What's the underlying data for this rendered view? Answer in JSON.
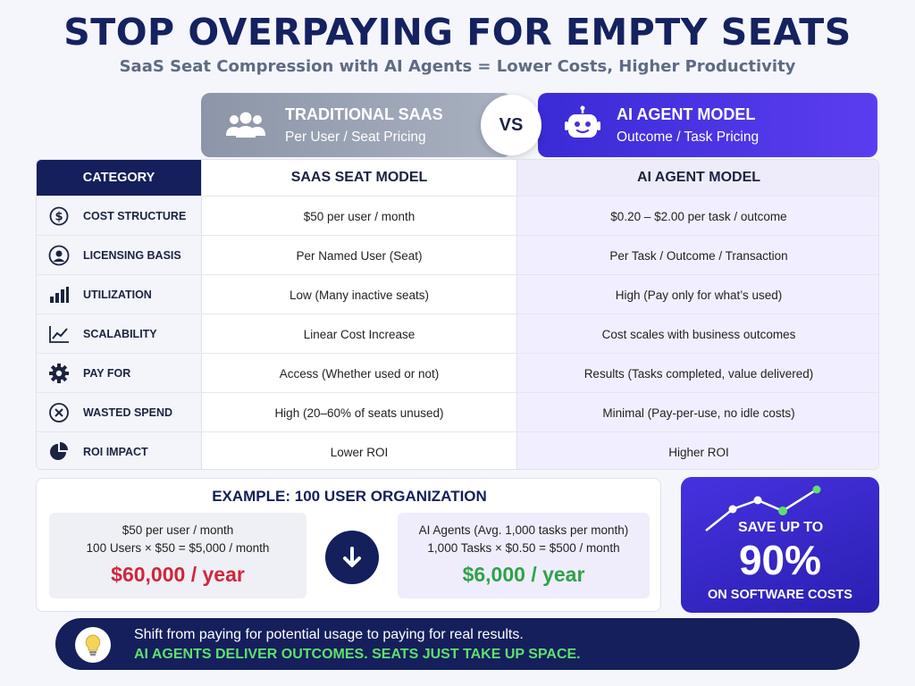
{
  "header": {
    "title": "STOP OVERPAYING FOR EMPTY SEATS",
    "subtitle": "SaaS Seat Compression with AI Agents = Lower Costs, Higher Productivity"
  },
  "comparison": {
    "left": {
      "title": "TRADITIONAL SAAS",
      "subtitle": "Per User / Seat Pricing",
      "icon": "users-group-icon"
    },
    "vs": "VS",
    "right": {
      "title": "AI AGENT MODEL",
      "subtitle": "Outcome / Task Pricing",
      "icon": "robot-icon"
    }
  },
  "table": {
    "headers": {
      "category": "CATEGORY",
      "saas": "SAAS SEAT MODEL",
      "ai": "AI AGENT MODEL"
    },
    "rows": [
      {
        "icon": "dollar-icon",
        "category": "COST STRUCTURE",
        "saas": "$50 per user / month",
        "ai": "$0.20 – $2.00 per task / outcome"
      },
      {
        "icon": "user-badge-icon",
        "category": "LICENSING BASIS",
        "saas": "Per Named User (Seat)",
        "ai": "Per Task / Outcome / Transaction"
      },
      {
        "icon": "bar-chart-icon",
        "category": "UTILIZATION",
        "saas": "Low (Many inactive seats)",
        "ai": "High (Pay only for what’s used)"
      },
      {
        "icon": "trend-chart-icon",
        "category": "SCALABILITY",
        "saas": "Linear Cost Increase",
        "ai": "Cost scales with business outcomes"
      },
      {
        "icon": "gear-icon",
        "category": "PAY FOR",
        "saas": "Access (Whether used or not)",
        "ai": "Results (Tasks completed, value delivered)"
      },
      {
        "icon": "x-circle-icon",
        "category": "WASTED SPEND",
        "saas": "High (20–60% of seats unused)",
        "ai": "Minimal (Pay-per-use, no idle costs)"
      },
      {
        "icon": "pie-chart-icon",
        "category": "ROI IMPACT",
        "saas": "Lower ROI",
        "ai": "Higher ROI"
      }
    ]
  },
  "example": {
    "title": "EXAMPLE: 100 USER ORGANIZATION",
    "left": {
      "line1": "$50 per user / month",
      "line2": "100 Users × $50 = $5,000 / month",
      "total": "$60,000 / year"
    },
    "right": {
      "line1": "AI Agents (Avg. 1,000 tasks per month)",
      "line2": "1,000 Tasks × $0.50 = $500 / month",
      "total": "$6,000 / year"
    },
    "arrow_icon": "arrow-down-icon"
  },
  "savings": {
    "line1": "SAVE UP TO",
    "percent": "90%",
    "line2": "ON SOFTWARE COSTS",
    "icon": "trend-line-icon"
  },
  "footer": {
    "icon": "lightbulb-icon",
    "line1": "Shift from paying for potential usage to paying for real results.",
    "line2": "AI AGENTS DELIVER OUTCOMES. SEATS JUST TAKE UP SPACE."
  },
  "colors": {
    "navy": "#141f5c",
    "accent_purple": "#4632e0",
    "red": "#d0263c",
    "green": "#2fa24a",
    "footer_green": "#5ee06e"
  }
}
